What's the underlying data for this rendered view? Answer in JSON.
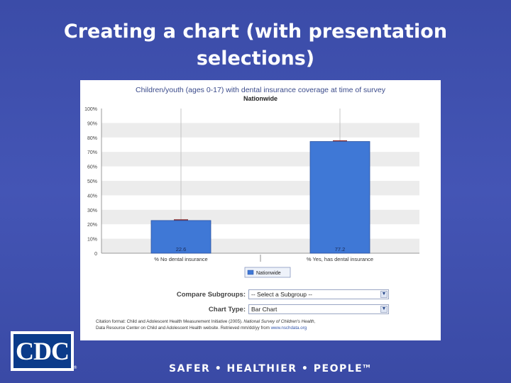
{
  "slide": {
    "title": "Creating a chart (with presentation selections)",
    "tagline": "SAFER • HEALTHIER • PEOPLE",
    "tagline_mark": "TM",
    "logo_text": "CDC",
    "logo_mark": "®"
  },
  "chart_data": {
    "type": "bar",
    "title": "Children/youth (ages 0-17) with dental insurance coverage at time of survey",
    "subtitle": "Nationwide",
    "categories": [
      "% No dental insurance",
      "% Yes, has dental insurance"
    ],
    "series": [
      {
        "name": "Nationwide",
        "values": [
          22.6,
          77.2
        ]
      }
    ],
    "data_labels": [
      "22.6",
      "77.2"
    ],
    "yticks": [
      "0",
      "10%",
      "20%",
      "30%",
      "40%",
      "50%",
      "60%",
      "70%",
      "80%",
      "90%",
      "100%"
    ],
    "ylim": [
      0,
      100
    ],
    "xlabel": "",
    "ylabel": "",
    "grid": "alternating horizontal bands",
    "error_bars": true,
    "legend": "bottom-center",
    "colors": {
      "bar": "#3f78d6",
      "bar_stroke": "#2a52a0",
      "error_bar": "#8a2a2a",
      "band": "#ececec"
    }
  },
  "controls": {
    "compare_label": "Compare Subgroups:",
    "compare_value": "-- Select a Subgroup --",
    "chart_type_label": "Chart Type:",
    "chart_type_value": "Bar Chart"
  },
  "citation": {
    "line1_prefix": "Citation format: Child and Adolescent Health Measurement Initiative (2005). ",
    "line1_source": "National Survey of Children's Health,",
    "line2_prefix": "Data Resource Center on Child and Adolescent Health website. Retrieved mm/dd/yy from ",
    "line2_url": "www.nschdata.org"
  },
  "colors": {
    "slide_background": "#4253b0",
    "title_text": "#ffffff",
    "logo_background": "#0b3b8a"
  }
}
